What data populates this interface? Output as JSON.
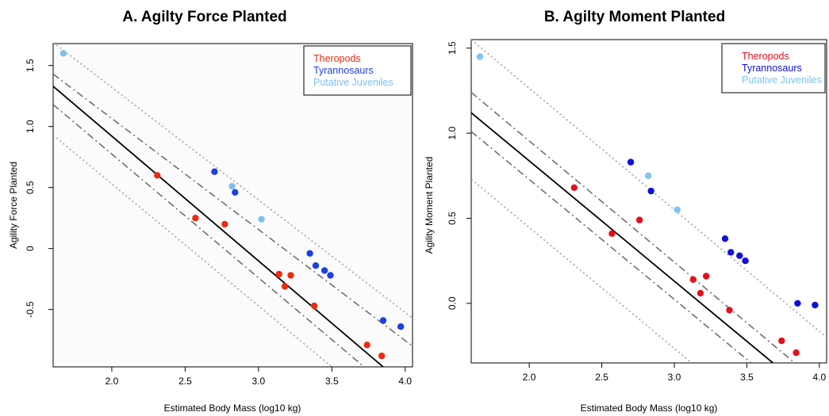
{
  "chart_data": [
    {
      "type": "scatter",
      "title": "A. Agilty Force Planted",
      "xlabel": "Estimated Body Mass (log10 kg)",
      "ylabel": "Agility Force Planted",
      "xlim": [
        1.6,
        4.05
      ],
      "ylim": [
        -0.97,
        1.68
      ],
      "xticks": [
        "2.0",
        "2.5",
        "3.0",
        "3.5",
        "4.0"
      ],
      "yticks": [
        "1.5",
        "1.0",
        "0.5",
        "0",
        "-0.5"
      ],
      "ytick_values": [
        1.5,
        1.0,
        0.5,
        0,
        -0.5
      ],
      "xtick_values": [
        2.0,
        2.5,
        3.0,
        3.5,
        4.0
      ],
      "legend_position": "top-right",
      "legend": [
        {
          "label": "Theropods",
          "color": "#ee2a10"
        },
        {
          "label": "Tyrannosaurs",
          "color": "#1c3fe0"
        },
        {
          "label": "Putative Juveniles",
          "color": "#7fc0f0"
        }
      ],
      "series": [
        {
          "name": "Theropods",
          "color": "#ee2a10",
          "points": [
            [
              2.31,
              0.6
            ],
            [
              2.57,
              0.25
            ],
            [
              2.77,
              0.2
            ],
            [
              3.14,
              -0.21
            ],
            [
              3.18,
              -0.31
            ],
            [
              3.22,
              -0.22
            ],
            [
              3.38,
              -0.47
            ],
            [
              3.74,
              -0.79
            ],
            [
              3.84,
              -0.88
            ]
          ]
        },
        {
          "name": "Tyrannosaurs",
          "color": "#1c3fe0",
          "points": [
            [
              2.7,
              0.63
            ],
            [
              2.84,
              0.46
            ],
            [
              3.35,
              -0.04
            ],
            [
              3.39,
              -0.14
            ],
            [
              3.45,
              -0.18
            ],
            [
              3.49,
              -0.22
            ],
            [
              3.85,
              -0.59
            ],
            [
              3.97,
              -0.64
            ]
          ]
        },
        {
          "name": "Putative Juveniles",
          "color": "#7fc0f0",
          "points": [
            [
              1.67,
              1.6
            ],
            [
              2.82,
              0.51
            ],
            [
              3.02,
              0.24
            ]
          ]
        }
      ],
      "lines": [
        {
          "style": "solid",
          "color": "#000000",
          "points": [
            [
              1.6,
              1.33
            ],
            [
              3.85,
              -0.97
            ]
          ]
        },
        {
          "style": "dashdot",
          "color": "#707070",
          "points": [
            [
              1.6,
              1.43
            ],
            [
              4.05,
              -0.8
            ]
          ]
        },
        {
          "style": "dashdot",
          "color": "#707070",
          "points": [
            [
              1.6,
              1.18
            ],
            [
              3.72,
              -0.97
            ]
          ]
        },
        {
          "style": "dotted",
          "color": "#b0b0b0",
          "points": [
            [
              1.6,
              1.69
            ],
            [
              4.05,
              -0.57
            ]
          ]
        },
        {
          "style": "dotted",
          "color": "#b0b0b0",
          "points": [
            [
              1.6,
              0.93
            ],
            [
              3.5,
              -0.97
            ]
          ]
        }
      ]
    },
    {
      "type": "scatter",
      "title": "B. Agilty Moment Planted",
      "xlabel": "Estimated Body Mass (log10 kg)",
      "ylabel": "Agility Moment Planted",
      "xlim": [
        1.6,
        4.05
      ],
      "ylim": [
        -0.35,
        1.55
      ],
      "xticks": [
        "2.0",
        "2.5",
        "3.0",
        "3.5",
        "4.0"
      ],
      "yticks": [
        "1.5",
        "1.0",
        "0.5",
        "0.0"
      ],
      "ytick_values": [
        1.5,
        1.0,
        0.5,
        0.0
      ],
      "xtick_values": [
        2.0,
        2.5,
        3.0,
        3.5,
        4.0
      ],
      "legend_position": "top-right",
      "legend": [
        {
          "label": "Theropods",
          "color": "#e3101c"
        },
        {
          "label": "Tyrannosaurs",
          "color": "#1010d8"
        },
        {
          "label": "Putative Juveniles",
          "color": "#7fc4f0"
        }
      ],
      "series": [
        {
          "name": "Theropods",
          "color": "#e3101c",
          "points": [
            [
              2.31,
              0.68
            ],
            [
              2.57,
              0.41
            ],
            [
              2.76,
              0.49
            ],
            [
              3.13,
              0.14
            ],
            [
              3.18,
              0.06
            ],
            [
              3.22,
              0.16
            ],
            [
              3.38,
              -0.04
            ],
            [
              3.74,
              -0.22
            ],
            [
              3.84,
              -0.29
            ]
          ]
        },
        {
          "name": "Tyrannosaurs",
          "color": "#1010d8",
          "points": [
            [
              2.7,
              0.83
            ],
            [
              2.84,
              0.66
            ],
            [
              3.35,
              0.38
            ],
            [
              3.39,
              0.3
            ],
            [
              3.45,
              0.28
            ],
            [
              3.49,
              0.25
            ],
            [
              3.85,
              0.0
            ],
            [
              3.97,
              -0.01
            ]
          ]
        },
        {
          "name": "Putative Juveniles",
          "color": "#7fc4f0",
          "points": [
            [
              1.66,
              1.45
            ],
            [
              2.82,
              0.75
            ],
            [
              3.02,
              0.55
            ]
          ]
        }
      ],
      "lines": [
        {
          "style": "solid",
          "color": "#000000",
          "points": [
            [
              1.6,
              1.12
            ],
            [
              3.68,
              -0.35
            ]
          ]
        },
        {
          "style": "dashdot",
          "color": "#707070",
          "points": [
            [
              1.6,
              1.24
            ],
            [
              3.83,
              -0.35
            ]
          ]
        },
        {
          "style": "dashdot",
          "color": "#707070",
          "points": [
            [
              1.6,
              1.01
            ],
            [
              3.53,
              -0.35
            ]
          ]
        },
        {
          "style": "dotted",
          "color": "#b0b0b0",
          "points": [
            [
              1.6,
              1.55
            ],
            [
              4.05,
              -0.2
            ]
          ]
        },
        {
          "style": "dotted",
          "color": "#b0b0b0",
          "points": [
            [
              1.6,
              0.73
            ],
            [
              3.12,
              -0.35
            ]
          ]
        }
      ]
    }
  ]
}
